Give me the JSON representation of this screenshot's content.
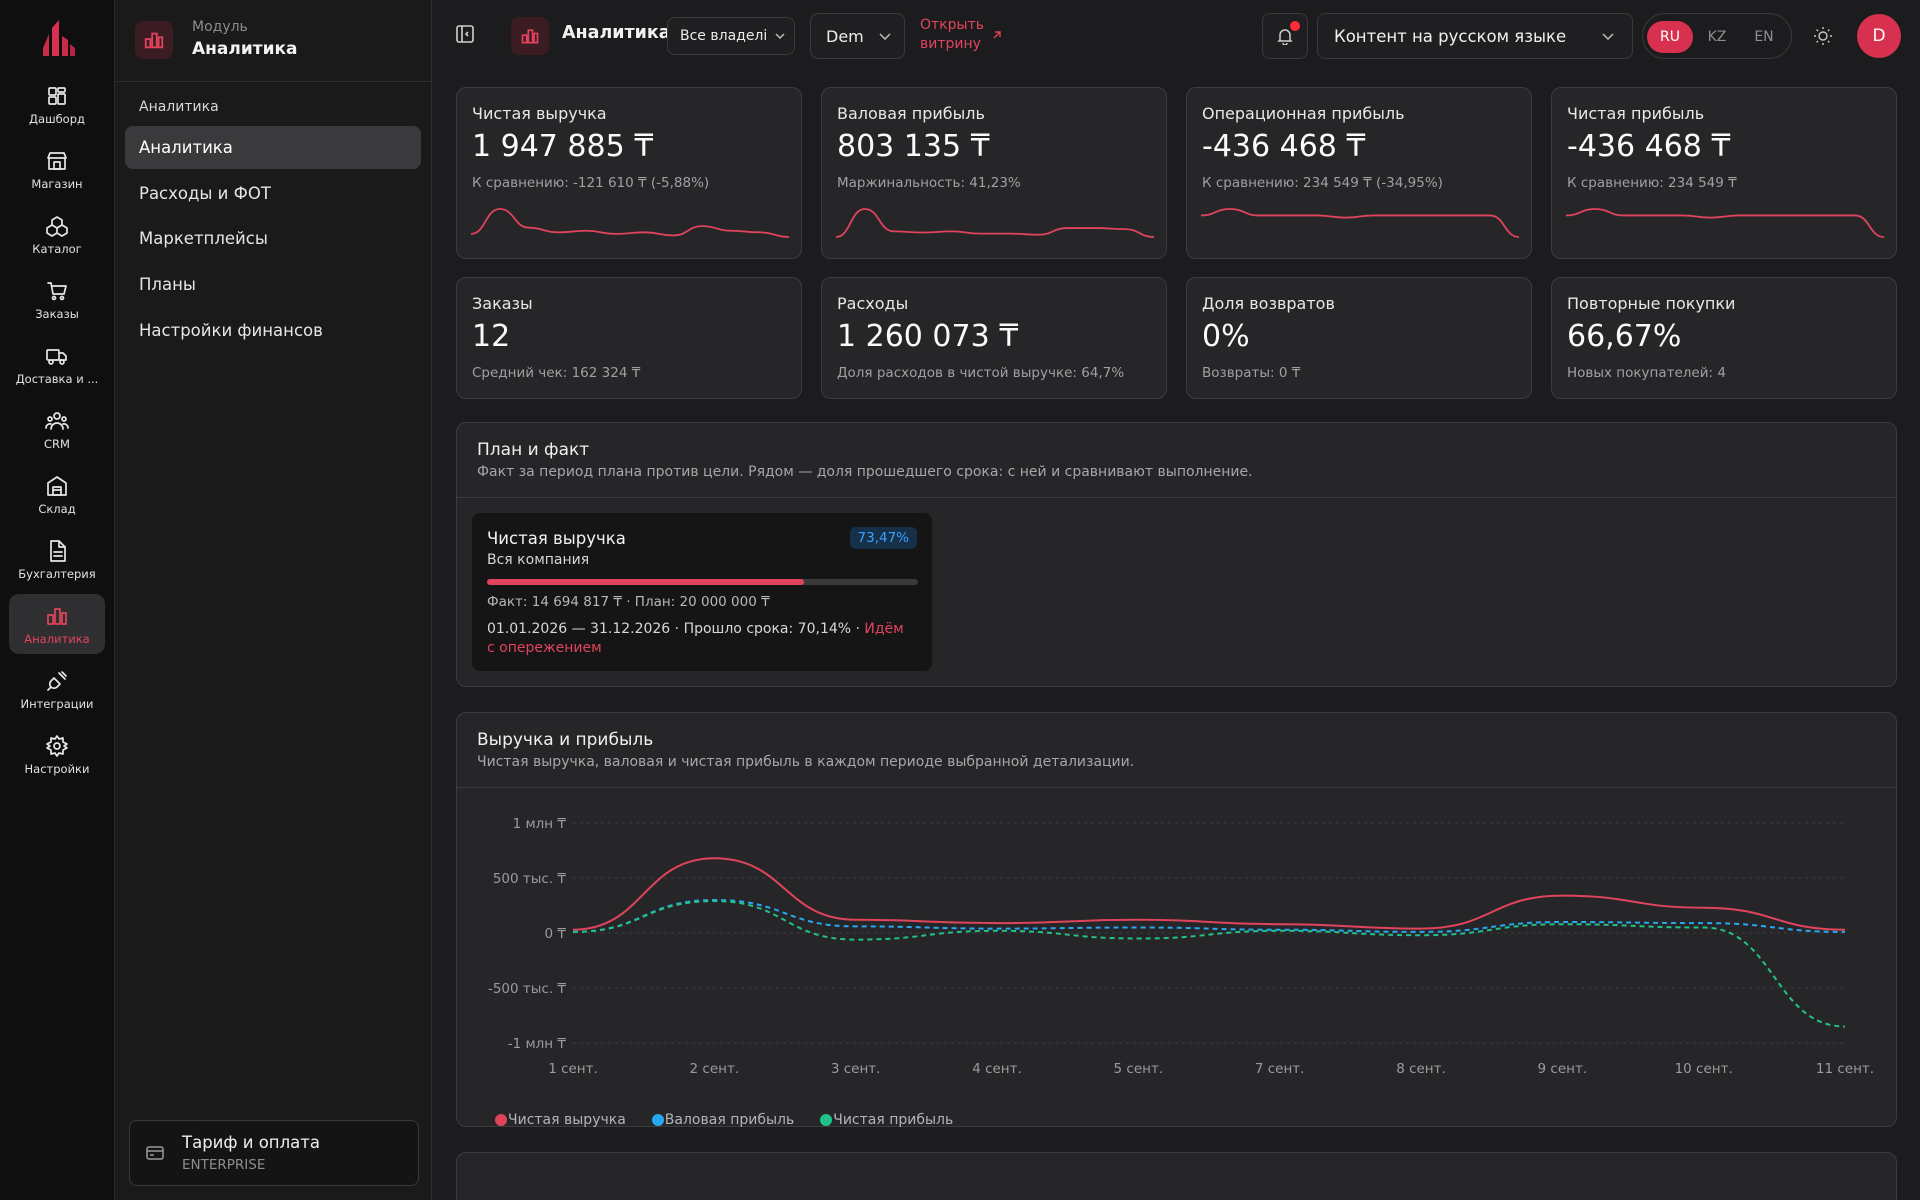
{
  "rail": {
    "items": [
      {
        "label": "Дашборд",
        "icon": "dashboard-icon"
      },
      {
        "label": "Магазин",
        "icon": "store-icon"
      },
      {
        "label": "Каталог",
        "icon": "catalog-icon"
      },
      {
        "label": "Заказы",
        "icon": "cart-icon"
      },
      {
        "label": "Доставка и ...",
        "icon": "truck-icon"
      },
      {
        "label": "CRM",
        "icon": "users-icon"
      },
      {
        "label": "Склад",
        "icon": "warehouse-icon"
      },
      {
        "label": "Бухгалтерия",
        "icon": "document-icon"
      },
      {
        "label": "Аналитика",
        "icon": "analytics-icon",
        "active": true
      },
      {
        "label": "Интеграции",
        "icon": "plug-icon"
      },
      {
        "label": "Настройки",
        "icon": "gear-icon"
      }
    ]
  },
  "module": {
    "small": "Модуль",
    "title": "Аналитика",
    "section": "Аналитика",
    "items": [
      "Аналитика",
      "Расходы и ФОТ",
      "Маркетплейсы",
      "Планы",
      "Настройки финансов"
    ]
  },
  "tariff": {
    "title": "Тариф и оплата",
    "plan": "ENTERPRISE"
  },
  "topbar": {
    "title": "Аналитика",
    "owner_select": "Все владелі",
    "store_select": "Dem",
    "open_store": "Открыть витрину",
    "content_lang": "Контент на русском языке",
    "langs": [
      "RU",
      "KZ",
      "EN"
    ],
    "active_lang": "RU",
    "avatar": "D"
  },
  "kpis": [
    {
      "label": "Чистая выручка",
      "value": "1 947 885 ₸",
      "sub": "К сравнению: -121 610 ₸ (-5,88%)",
      "spark": [
        2,
        18,
        6,
        3,
        4,
        2,
        3,
        1,
        7,
        4,
        3,
        0
      ]
    },
    {
      "label": "Валовая прибыль",
      "value": "803 135 ₸",
      "sub": "Маржинальность: 41,23%",
      "spark": [
        1,
        26,
        6,
        5,
        6,
        4,
        4,
        3,
        9,
        9,
        8,
        1
      ]
    },
    {
      "label": "Операционная прибыль",
      "value": "-436 468 ₸",
      "sub": "К сравнению: 234 549 ₸ (-34,95%)",
      "spark": [
        10,
        13,
        10,
        10,
        10,
        9,
        10,
        10,
        10,
        10,
        10,
        0
      ]
    },
    {
      "label": "Чистая прибыль",
      "value": "-436 468 ₸",
      "sub": "К сравнению: 234 549 ₸",
      "spark": [
        10,
        13,
        10,
        10,
        10,
        9,
        10,
        10,
        10,
        10,
        10,
        0
      ]
    },
    {
      "label": "Заказы",
      "value": "12",
      "sub": "Средний чек: 162 324 ₸"
    },
    {
      "label": "Расходы",
      "value": "1 260 073 ₸",
      "sub": "Доля расходов в чистой выручке: 64,7%"
    },
    {
      "label": "Доля возвратов",
      "value": "0%",
      "sub": "Возвраты: 0 ₸"
    },
    {
      "label": "Повторные покупки",
      "value": "66,67%",
      "sub": "Новых покупателей: 4"
    }
  ],
  "plan_section": {
    "title": "План и факт",
    "desc": "Факт за период плана против цели. Рядом — доля прошедшего срока: с ней и сравнивают выполнение.",
    "card": {
      "title": "Чистая выручка",
      "scope": "Вся компания",
      "percent": "73,47%",
      "progress": 0.7347,
      "fact_plan": "Факт: 14 694 817 ₸ · План: 20 000 000 ₸",
      "period": "01.01.2026 — 31.12.2026 · Прошло срока: 70,14% · ",
      "status": "Идём с опережением"
    }
  },
  "chart_section": {
    "title": "Выручка и прибыль",
    "desc": "Чистая выручка, валовая и чистая прибыль в каждом периоде выбранной детализации."
  },
  "chart_data": {
    "type": "line",
    "x": [
      "1 сент.",
      "2 сент.",
      "3 сент.",
      "4 сент.",
      "5 сент.",
      "7 сент.",
      "8 сент.",
      "9 сент.",
      "10 сент.",
      "11 сент."
    ],
    "y_ticks": [
      "1 млн ₸",
      "500 тыс. ₸",
      "0 ₸",
      "-500 тыс. ₸",
      "-1 млн ₸"
    ],
    "ylim": [
      -1000000,
      1000000
    ],
    "grid": true,
    "legend": "bottom-left",
    "series": [
      {
        "name": "Чистая выручка",
        "color": "#e0445c",
        "dashed": false,
        "values": [
          30000,
          680000,
          120000,
          90000,
          120000,
          80000,
          40000,
          340000,
          230000,
          30000
        ]
      },
      {
        "name": "Валовая прибыль",
        "color": "#28a8f0",
        "dashed": true,
        "values": [
          10000,
          300000,
          60000,
          40000,
          50000,
          30000,
          10000,
          100000,
          90000,
          10000
        ]
      },
      {
        "name": "Чистая прибыль",
        "color": "#22c08a",
        "dashed": true,
        "values": [
          10000,
          290000,
          -60000,
          20000,
          -50000,
          20000,
          -20000,
          80000,
          50000,
          -850000
        ]
      }
    ]
  }
}
